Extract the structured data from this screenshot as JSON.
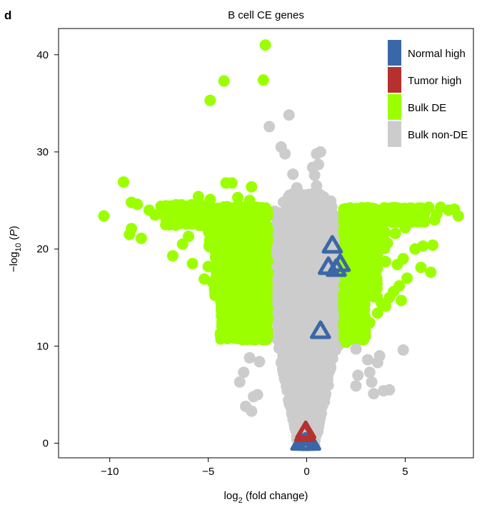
{
  "panel_label": "d",
  "chart_data": {
    "type": "scatter",
    "title": "B cell CE genes",
    "xlabel": {
      "prefix": "log",
      "sub": "2",
      "suffix": " (fold change)"
    },
    "ylabel": {
      "prefix": "−log",
      "sub": "10",
      "suffix": " (P)",
      "italic_part": "P"
    },
    "xlim": [
      -12.6,
      8.9
    ],
    "ylim": [
      -1.5,
      42.7
    ],
    "xticks": [
      -10,
      -5,
      0,
      5
    ],
    "xtick_labels": [
      "−10",
      "−5",
      "0",
      "5"
    ],
    "yticks": [
      0,
      10,
      20,
      30,
      40
    ],
    "ytick_labels": [
      "0",
      "10",
      "20",
      "30",
      "40"
    ],
    "grid": false,
    "legend_position": "top-right",
    "colors": {
      "normal_high": "#3a67a8",
      "tumor_high": "#b5302f",
      "bulk_de": "#9bff00",
      "bulk_non_de": "#cccccc"
    },
    "legend": [
      {
        "label": "Normal high",
        "color": "#3a67a8"
      },
      {
        "label": "Tumor high",
        "color": "#b5302f"
      },
      {
        "label": "Bulk DE",
        "color": "#9bff00"
      },
      {
        "label": "Bulk non-DE",
        "color": "#cccccc"
      }
    ],
    "series": [
      {
        "name": "Bulk non-DE",
        "marker": "circle",
        "points": [
          [
            -1.9,
            32.6
          ],
          [
            -0.9,
            33.8
          ],
          [
            -1.1,
            29.8
          ],
          [
            -1.3,
            30.5
          ],
          [
            -0.7,
            27.7
          ],
          [
            -0.5,
            26.3
          ],
          [
            -0.6,
            24.5
          ],
          [
            -0.4,
            22.4
          ],
          [
            0.0,
            0.6
          ],
          [
            -0.3,
            21.0
          ],
          [
            0.7,
            30.0
          ],
          [
            0.5,
            29.8
          ],
          [
            0.3,
            28.4
          ],
          [
            0.6,
            28.7
          ],
          [
            0.4,
            27.6
          ],
          [
            0.5,
            26.5
          ],
          [
            -1.0,
            25.0
          ],
          [
            1.0,
            24.9
          ],
          [
            2.5,
            9.7
          ],
          [
            3.6,
            8.3
          ],
          [
            3.7,
            9.0
          ],
          [
            3.1,
            8.6
          ],
          [
            2.6,
            7.0
          ],
          [
            3.2,
            7.3
          ],
          [
            3.3,
            6.3
          ],
          [
            2.5,
            5.9
          ],
          [
            3.9,
            5.4
          ],
          [
            4.2,
            5.5
          ],
          [
            3.4,
            5.1
          ],
          [
            -3.2,
            7.3
          ],
          [
            -3.4,
            6.3
          ],
          [
            -2.5,
            5.0
          ],
          [
            -2.7,
            4.8
          ],
          [
            -2.8,
            3.3
          ],
          [
            -3.1,
            3.8
          ],
          [
            4.9,
            9.6
          ],
          [
            -2.4,
            8.4
          ],
          [
            -2.9,
            8.8
          ]
        ]
      },
      {
        "name": "Bulk DE",
        "marker": "circle",
        "points": [
          [
            -2.1,
            41.0
          ],
          [
            -2.2,
            37.4
          ],
          [
            -4.2,
            37.3
          ],
          [
            -4.9,
            35.3
          ],
          [
            -9.3,
            26.9
          ],
          [
            -10.3,
            23.4
          ],
          [
            -8.9,
            24.8
          ],
          [
            -8.6,
            24.6
          ],
          [
            -8.9,
            22.1
          ],
          [
            -9.0,
            21.5
          ],
          [
            -8.0,
            24.0
          ],
          [
            -7.7,
            23.5
          ],
          [
            -7.4,
            24.4
          ],
          [
            -6.9,
            24.4
          ],
          [
            -6.5,
            24.5
          ],
          [
            -6.2,
            24.2
          ],
          [
            -6.8,
            19.3
          ],
          [
            -6.3,
            20.5
          ],
          [
            -5.5,
            25.4
          ],
          [
            -4.9,
            25.1
          ],
          [
            -4.1,
            26.8
          ],
          [
            -3.8,
            26.8
          ],
          [
            -3.5,
            25.3
          ],
          [
            -2.8,
            26.4
          ],
          [
            -2.9,
            25.0
          ],
          [
            -4.3,
            14.0
          ],
          [
            -4.3,
            12.0
          ],
          [
            -3.9,
            11.7
          ],
          [
            -6.0,
            21.3
          ],
          [
            -5.8,
            18.5
          ],
          [
            -5.2,
            16.9
          ],
          [
            -5.0,
            18.2
          ],
          [
            -4.8,
            16.6
          ],
          [
            -4.5,
            15.3
          ],
          [
            -8.4,
            21.1
          ],
          [
            5.0,
            22.2
          ],
          [
            4.5,
            21.6
          ],
          [
            4.1,
            20.6
          ],
          [
            4.9,
            19.0
          ],
          [
            5.5,
            20.0
          ],
          [
            4.0,
            18.7
          ],
          [
            4.6,
            18.4
          ],
          [
            5.9,
            20.3
          ],
          [
            6.4,
            20.4
          ],
          [
            5.1,
            17.0
          ],
          [
            4.7,
            16.2
          ],
          [
            4.4,
            15.6
          ],
          [
            4.2,
            15.0
          ],
          [
            4.8,
            14.7
          ],
          [
            4.0,
            14.1
          ],
          [
            3.8,
            14.4
          ],
          [
            3.6,
            13.4
          ],
          [
            3.2,
            12.4
          ],
          [
            2.8,
            11.2
          ],
          [
            2.7,
            12.7
          ],
          [
            5.3,
            23.9
          ],
          [
            5.7,
            24.1
          ],
          [
            6.0,
            23.8
          ],
          [
            6.2,
            24.3
          ],
          [
            6.8,
            24.3
          ],
          [
            7.2,
            24.0
          ],
          [
            7.5,
            24.1
          ],
          [
            7.7,
            23.4
          ],
          [
            6.6,
            23.6
          ],
          [
            4.3,
            24.2
          ],
          [
            6.5,
            23.0
          ],
          [
            6.3,
            17.6
          ],
          [
            5.8,
            18.1
          ],
          [
            2.5,
            11.0
          ],
          [
            1.9,
            10.8
          ],
          [
            2.0,
            10.4
          ],
          [
            2.2,
            10.9
          ]
        ]
      },
      {
        "name": "Normal high",
        "marker": "triangle",
        "points": [
          [
            1.3,
            20.3
          ],
          [
            1.1,
            18.1
          ],
          [
            1.5,
            17.9
          ],
          [
            1.7,
            18.4
          ],
          [
            0.7,
            11.5
          ],
          [
            -0.1,
            0.0
          ],
          [
            0.2,
            0.0
          ],
          [
            -0.3,
            0.0
          ],
          [
            0.0,
            0.0
          ]
        ]
      },
      {
        "name": "Tumor high",
        "marker": "triangle",
        "points": [
          [
            -0.1,
            0.9
          ],
          [
            -0.05,
            1.2
          ]
        ]
      }
    ]
  }
}
